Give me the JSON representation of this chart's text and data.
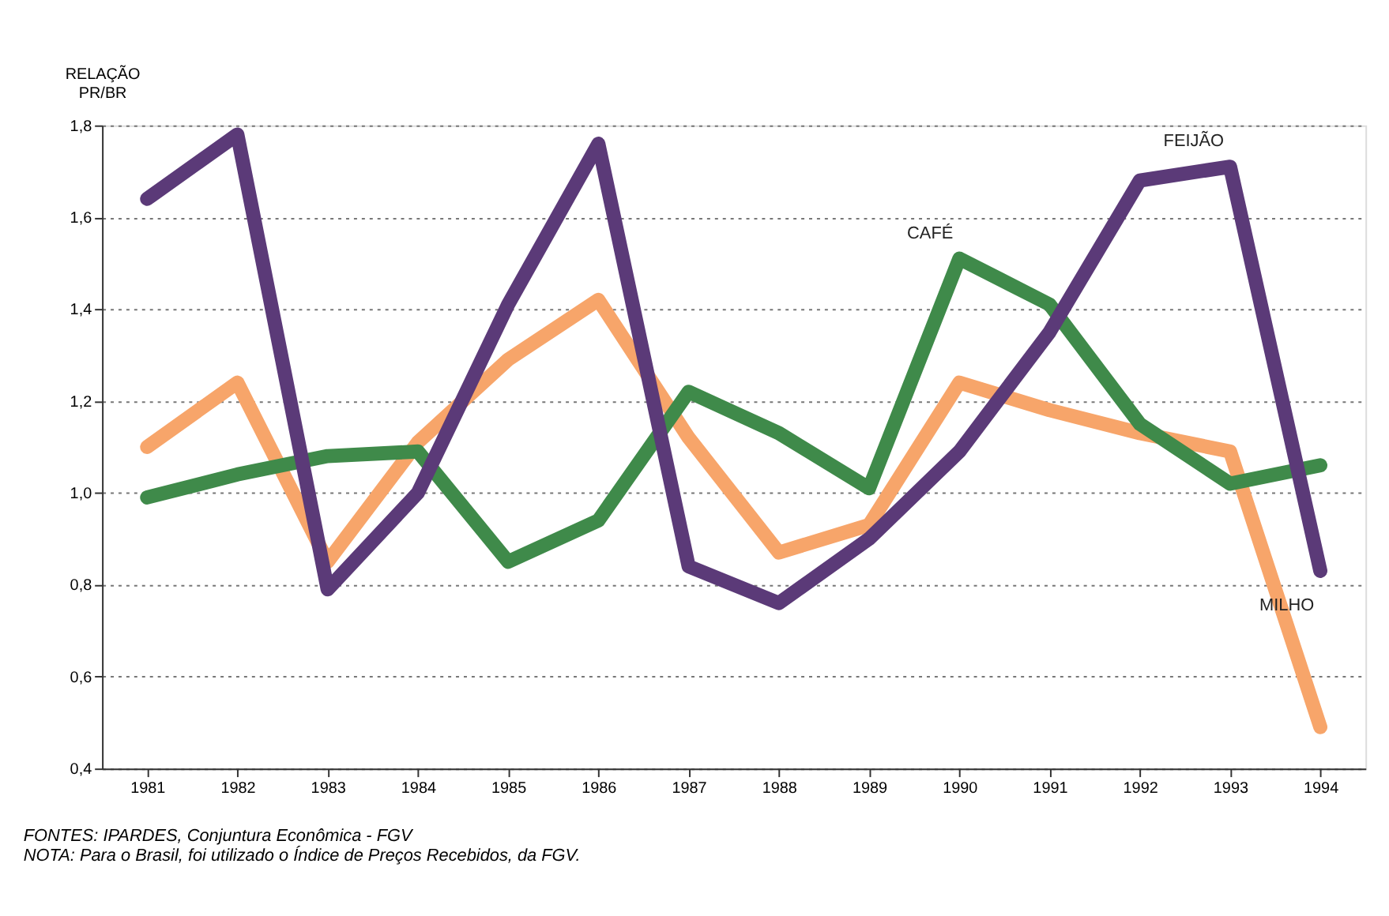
{
  "chart_data": {
    "type": "line",
    "ylabel": "RELAÇÃO PR/BR",
    "categories": [
      "1981",
      "1982",
      "1983",
      "1984",
      "1985",
      "1986",
      "1987",
      "1988",
      "1989",
      "1990",
      "1991",
      "1992",
      "1993",
      "1994"
    ],
    "series": [
      {
        "color": "#f7a56a",
        "values": [
          1.1,
          1.24,
          0.85,
          1.11,
          1.29,
          1.42,
          1.12,
          0.87,
          0.93,
          1.24,
          1.18,
          1.13,
          1.09,
          0.49
        ]
      },
      {
        "color": "#3f8a4a",
        "values": [
          0.99,
          1.04,
          1.08,
          1.09,
          0.85,
          0.94,
          1.22,
          1.13,
          1.01,
          1.51,
          1.41,
          1.15,
          1.02,
          1.06
        ]
      },
      {
        "color": "#5b3a78",
        "values": [
          1.64,
          1.78,
          0.79,
          1.0,
          1.41,
          1.76,
          0.84,
          0.76,
          0.9,
          1.09,
          1.35,
          1.68,
          1.71,
          0.83
        ]
      }
    ],
    "ylim": [
      0.4,
      1.8
    ],
    "yticks": [
      {
        "value": 0.4,
        "label": "0,4"
      },
      {
        "value": 0.6,
        "label": "0,6"
      },
      {
        "value": 0.8,
        "label": "0,8"
      },
      {
        "value": 1.0,
        "label": "1,0"
      },
      {
        "value": 1.2,
        "label": "1,2"
      },
      {
        "value": 1.4,
        "label": "1,4"
      },
      {
        "value": 1.6,
        "label": "1,6"
      },
      {
        "value": 1.8,
        "label": "1,8"
      }
    ],
    "grid": "y",
    "marker": "none",
    "line_style": "solid",
    "annotations": [
      {
        "text": "MILHO",
        "x": "1994",
        "y": 0.83
      },
      {
        "text": "CAFÉ",
        "x": "1990",
        "y": 1.51
      },
      {
        "text": "FEIJÃO",
        "x": "1993",
        "y": 1.71
      },
      "FONTES: IPARDES, Conjuntura Econômica - FGV",
      "NOTA: Para o Brasil, foi utilizado o Índice de Preços Recebidos, da FGV."
    ]
  }
}
